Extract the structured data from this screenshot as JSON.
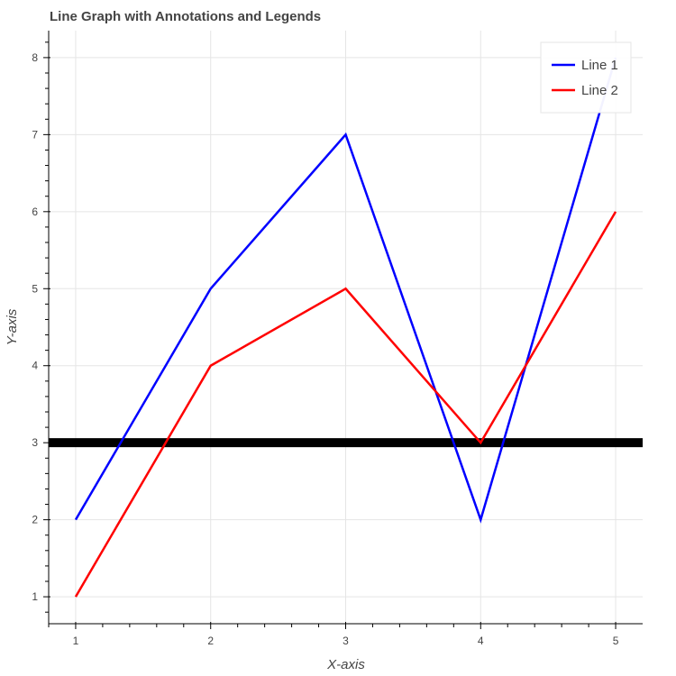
{
  "chart_data": {
    "type": "line",
    "title": "Line Graph with Annotations and Legends",
    "xlabel": "X-axis",
    "ylabel": "Y-axis",
    "xlim": [
      0.8,
      5.2
    ],
    "ylim": [
      0.65,
      8.35
    ],
    "xticks": [
      1,
      2,
      3,
      4,
      5
    ],
    "yticks": [
      1,
      2,
      3,
      4,
      5,
      6,
      7,
      8
    ],
    "x_tick_labels": [
      "1",
      "2",
      "3",
      "4",
      "5"
    ],
    "y_tick_labels": [
      "1",
      "2",
      "3",
      "4",
      "5",
      "6",
      "7",
      "8"
    ],
    "grid": true,
    "legend_position": "top-right",
    "x": [
      1,
      2,
      3,
      4,
      5
    ],
    "series": [
      {
        "name": "Line 1",
        "color": "#0000ff",
        "values": [
          2,
          5,
          7,
          2,
          8
        ]
      },
      {
        "name": "Line 2",
        "color": "#ff0000",
        "values": [
          1,
          4,
          5,
          3,
          6
        ]
      }
    ],
    "annotations": [
      {
        "type": "horizontal-span",
        "y": 3,
        "color": "#000000"
      }
    ]
  }
}
